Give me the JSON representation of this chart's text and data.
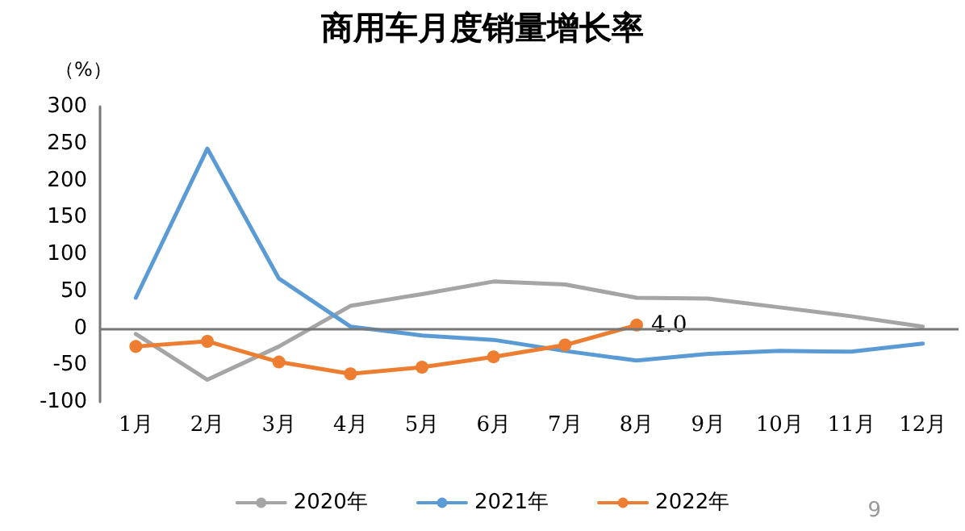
{
  "chart_data": {
    "type": "line",
    "title": "商用车月度销量增长率",
    "ylabel": "（%）",
    "categories": [
      "1月",
      "2月",
      "3月",
      "4月",
      "5月",
      "6月",
      "7月",
      "8月",
      "9月",
      "10月",
      "11月",
      "12月"
    ],
    "series": [
      {
        "name": "2020年",
        "color": "#a5a5a5",
        "marker": "none",
        "values": [
          -8,
          -70,
          -25,
          30,
          46,
          63,
          59,
          41,
          40,
          28,
          16,
          2
        ]
      },
      {
        "name": "2021年",
        "color": "#5b9bd5",
        "marker": "none",
        "values": [
          41,
          243,
          67,
          2,
          -10,
          -16,
          -31,
          -44,
          -35,
          -31,
          -32,
          -21
        ]
      },
      {
        "name": "2022年",
        "color": "#ed7d31",
        "marker": "circle",
        "values": [
          -25,
          -18,
          -46,
          -62,
          -53,
          -39,
          -23,
          4.0,
          null,
          null,
          null,
          null
        ],
        "value_labels": [
          null,
          null,
          null,
          null,
          null,
          null,
          null,
          "4.0",
          null,
          null,
          null,
          null
        ]
      }
    ],
    "ylim": [
      -100,
      300
    ],
    "yticks": [
      -100,
      -50,
      0,
      50,
      100,
      150,
      200,
      250,
      300
    ],
    "grid": false,
    "ref_lines": [
      {
        "axis": "y",
        "value": 0,
        "color": "#777777"
      }
    ],
    "legend": "bottom",
    "line_style": "solid",
    "annotations": [
      "9"
    ]
  }
}
